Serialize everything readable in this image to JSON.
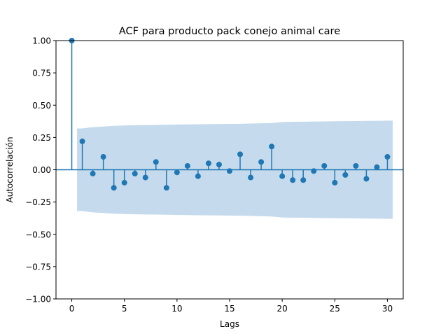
{
  "chart_data": {
    "type": "stem",
    "title": "ACF para producto pack conejo animal care",
    "xlabel": "Lags",
    "ylabel": "Autocorrelación",
    "xlim": [
      -1.5,
      31.5
    ],
    "ylim": [
      -1.0,
      1.0
    ],
    "xticks": [
      0,
      5,
      10,
      15,
      20,
      25,
      30
    ],
    "xtick_labels": [
      "0",
      "5",
      "10",
      "15",
      "20",
      "25",
      "30"
    ],
    "yticks": [
      -1.0,
      -0.75,
      -0.5,
      -0.25,
      0.0,
      0.25,
      0.5,
      0.75,
      1.0
    ],
    "ytick_labels": [
      "−1.00",
      "−0.75",
      "−0.50",
      "−0.25",
      "0.00",
      "0.25",
      "0.50",
      "0.75",
      "1.00"
    ],
    "lags": [
      0,
      1,
      2,
      3,
      4,
      5,
      6,
      7,
      8,
      9,
      10,
      11,
      12,
      13,
      14,
      15,
      16,
      17,
      18,
      19,
      20,
      21,
      22,
      23,
      24,
      25,
      26,
      27,
      28,
      29,
      30
    ],
    "values": [
      1.0,
      0.22,
      -0.03,
      0.1,
      -0.14,
      -0.1,
      -0.03,
      -0.06,
      0.06,
      -0.14,
      -0.02,
      0.03,
      -0.05,
      0.05,
      0.04,
      -0.01,
      0.12,
      -0.06,
      0.06,
      0.18,
      -0.05,
      -0.08,
      -0.08,
      -0.01,
      0.03,
      -0.1,
      -0.04,
      0.03,
      -0.07,
      0.02,
      0.1
    ],
    "confidence_band": {
      "lags": [
        0.5,
        1,
        2,
        3,
        4,
        5,
        6,
        7,
        8,
        9,
        10,
        11,
        12,
        13,
        14,
        15,
        16,
        17,
        18,
        19,
        20,
        21,
        22,
        23,
        24,
        25,
        26,
        27,
        28,
        29,
        30,
        30.5
      ],
      "upper": [
        0.32,
        0.32,
        0.33,
        0.335,
        0.34,
        0.343,
        0.345,
        0.346,
        0.347,
        0.348,
        0.35,
        0.351,
        0.352,
        0.353,
        0.354,
        0.355,
        0.356,
        0.358,
        0.36,
        0.362,
        0.37,
        0.371,
        0.372,
        0.373,
        0.374,
        0.375,
        0.376,
        0.377,
        0.378,
        0.379,
        0.38,
        0.38
      ]
    },
    "colors": {
      "stem": "#1f77b4",
      "band": "#c5daec",
      "zero_line": "#1f77b4"
    },
    "grid": false,
    "legend": "none"
  }
}
